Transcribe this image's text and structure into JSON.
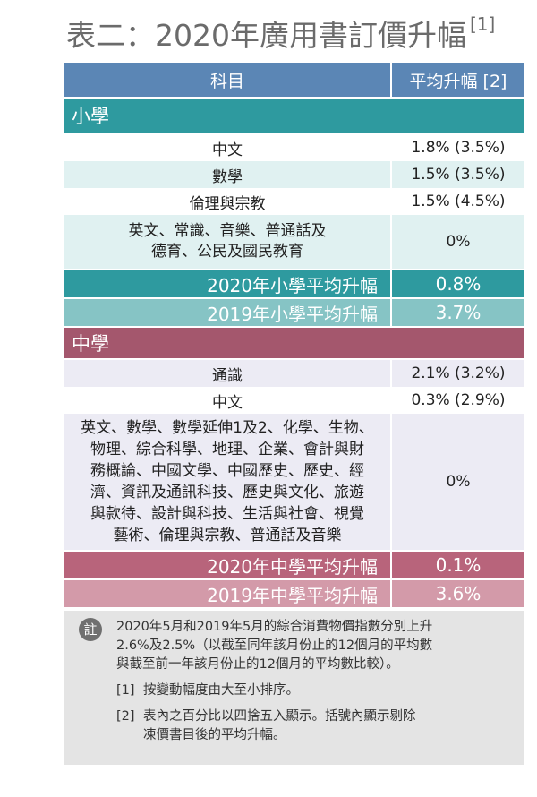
{
  "title": "表二：2020年廣用書訂價升幅",
  "title_ref": "[1]",
  "header": {
    "subject": "科目",
    "avg_increase": "平均升幅 [2]"
  },
  "primary": {
    "label": "小學",
    "rows": [
      {
        "subject": "中文",
        "value": "1.8% (3.5%)"
      },
      {
        "subject": "數學",
        "value": "1.5% (3.5%)"
      },
      {
        "subject": "倫理與宗教",
        "value": "1.5% (4.5%)"
      },
      {
        "subject_lines": [
          "英文、常識、音樂、普通話及",
          "德育、公民及國民教育"
        ],
        "value": "0%"
      }
    ],
    "avg_2020": {
      "label": "2020年小學平均升幅",
      "value": "0.8%"
    },
    "avg_2019": {
      "label": "2019年小學平均升幅",
      "value": "3.7%"
    }
  },
  "secondary": {
    "label": "中學",
    "rows": [
      {
        "subject": "通識",
        "value": "2.1% (3.2%)"
      },
      {
        "subject": "中文",
        "value": "0.3% (2.9%)"
      },
      {
        "subject_lines": [
          "英文、數學、數學延伸1及2、化學、生物、",
          "物理、綜合科學、地理、企業、會計與財",
          "務概論、中國文學、中國歷史、歷史、經",
          "濟、資訊及通訊科技、歷史與文化、旅遊",
          "與款待、設計與科技、生活與社會、視覺",
          "藝術、倫理與宗教、普通話及音樂"
        ],
        "value": "0%"
      }
    ],
    "avg_2020": {
      "label": "2020年中學平均升幅",
      "value": "0.1%"
    },
    "avg_2019": {
      "label": "2019年中學平均升幅",
      "value": "3.6%"
    }
  },
  "notes": {
    "icon_label": "註",
    "main_lines": [
      "2020年5月和2019年5月的綜合消費物價指數分別上升",
      "2.6%及2.5%（以截至同年該月份止的12個月的平均數",
      "與截至前一年該月份止的12個月的平均數比較）。"
    ],
    "items": [
      {
        "num": "[1]",
        "lines": [
          "按變動幅度由大至小排序。"
        ]
      },
      {
        "num": "[2]",
        "lines": [
          "表內之百分比以四捨五入顯示。括號內顯示剔除",
          "凍價書目後的平均升幅。"
        ]
      }
    ]
  }
}
